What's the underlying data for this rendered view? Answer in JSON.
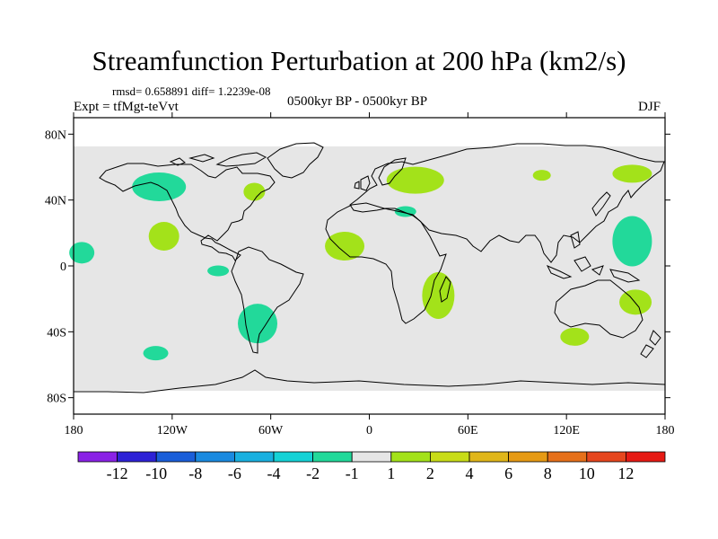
{
  "title": "Streamfunction Perturbation at 200 hPa (km2/s)",
  "stats_text": "rmsd= 0.658891 diff= 1.2239e-08",
  "experiment_label": "Expt = tfMgt-teVvt",
  "period_label": "0500kyr BP - 0500kyr BP",
  "season_label": "DJF",
  "colors": {
    "background_band": "#e6e6e6",
    "coastline": "#000000",
    "positive_anomaly": "#a3e21a",
    "negative_anomaly": "#22d99a"
  },
  "lat_ticks": [
    "80N",
    "40N",
    "0",
    "40S",
    "80S"
  ],
  "lon_ticks": [
    "180",
    "120W",
    "60W",
    "0",
    "60E",
    "120E",
    "180"
  ],
  "colorbar": {
    "colors": [
      "#8a22e6",
      "#2e22d6",
      "#1a5ed9",
      "#1a8ae0",
      "#19b0e0",
      "#15d2d6",
      "#22d99a",
      "#e6e6e6",
      "#a3e21a",
      "#c8dc18",
      "#e0b61a",
      "#e69a14",
      "#e6701a",
      "#e6461e",
      "#e61a14"
    ],
    "labels": [
      "-12",
      "-10",
      "-8",
      "-6",
      "-4",
      "-2",
      "-1",
      "1",
      "2",
      "4",
      "6",
      "8",
      "10",
      "12"
    ]
  },
  "anomalies": [
    {
      "sign": "negative",
      "lon": -128,
      "lat": 48
    },
    {
      "sign": "positive",
      "lon": -125,
      "lat": 18
    },
    {
      "sign": "negative",
      "lon": -175,
      "lat": 8
    },
    {
      "sign": "negative",
      "lon": -92,
      "lat": -3
    },
    {
      "sign": "negative",
      "lon": -68,
      "lat": -35
    },
    {
      "sign": "positive",
      "lon": -70,
      "lat": 45
    },
    {
      "sign": "negative",
      "lon": -130,
      "lat": -53
    },
    {
      "sign": "positive",
      "lon": -15,
      "lat": 12
    },
    {
      "sign": "positive",
      "lon": 28,
      "lat": 52
    },
    {
      "sign": "negative",
      "lon": 22,
      "lat": 33
    },
    {
      "sign": "positive",
      "lon": 42,
      "lat": -18
    },
    {
      "sign": "positive",
      "lon": 105,
      "lat": 55
    },
    {
      "sign": "negative",
      "lon": 160,
      "lat": 15
    },
    {
      "sign": "positive",
      "lon": 160,
      "lat": 56
    },
    {
      "sign": "positive",
      "lon": 162,
      "lat": -22
    },
    {
      "sign": "positive",
      "lon": 125,
      "lat": -43
    }
  ]
}
